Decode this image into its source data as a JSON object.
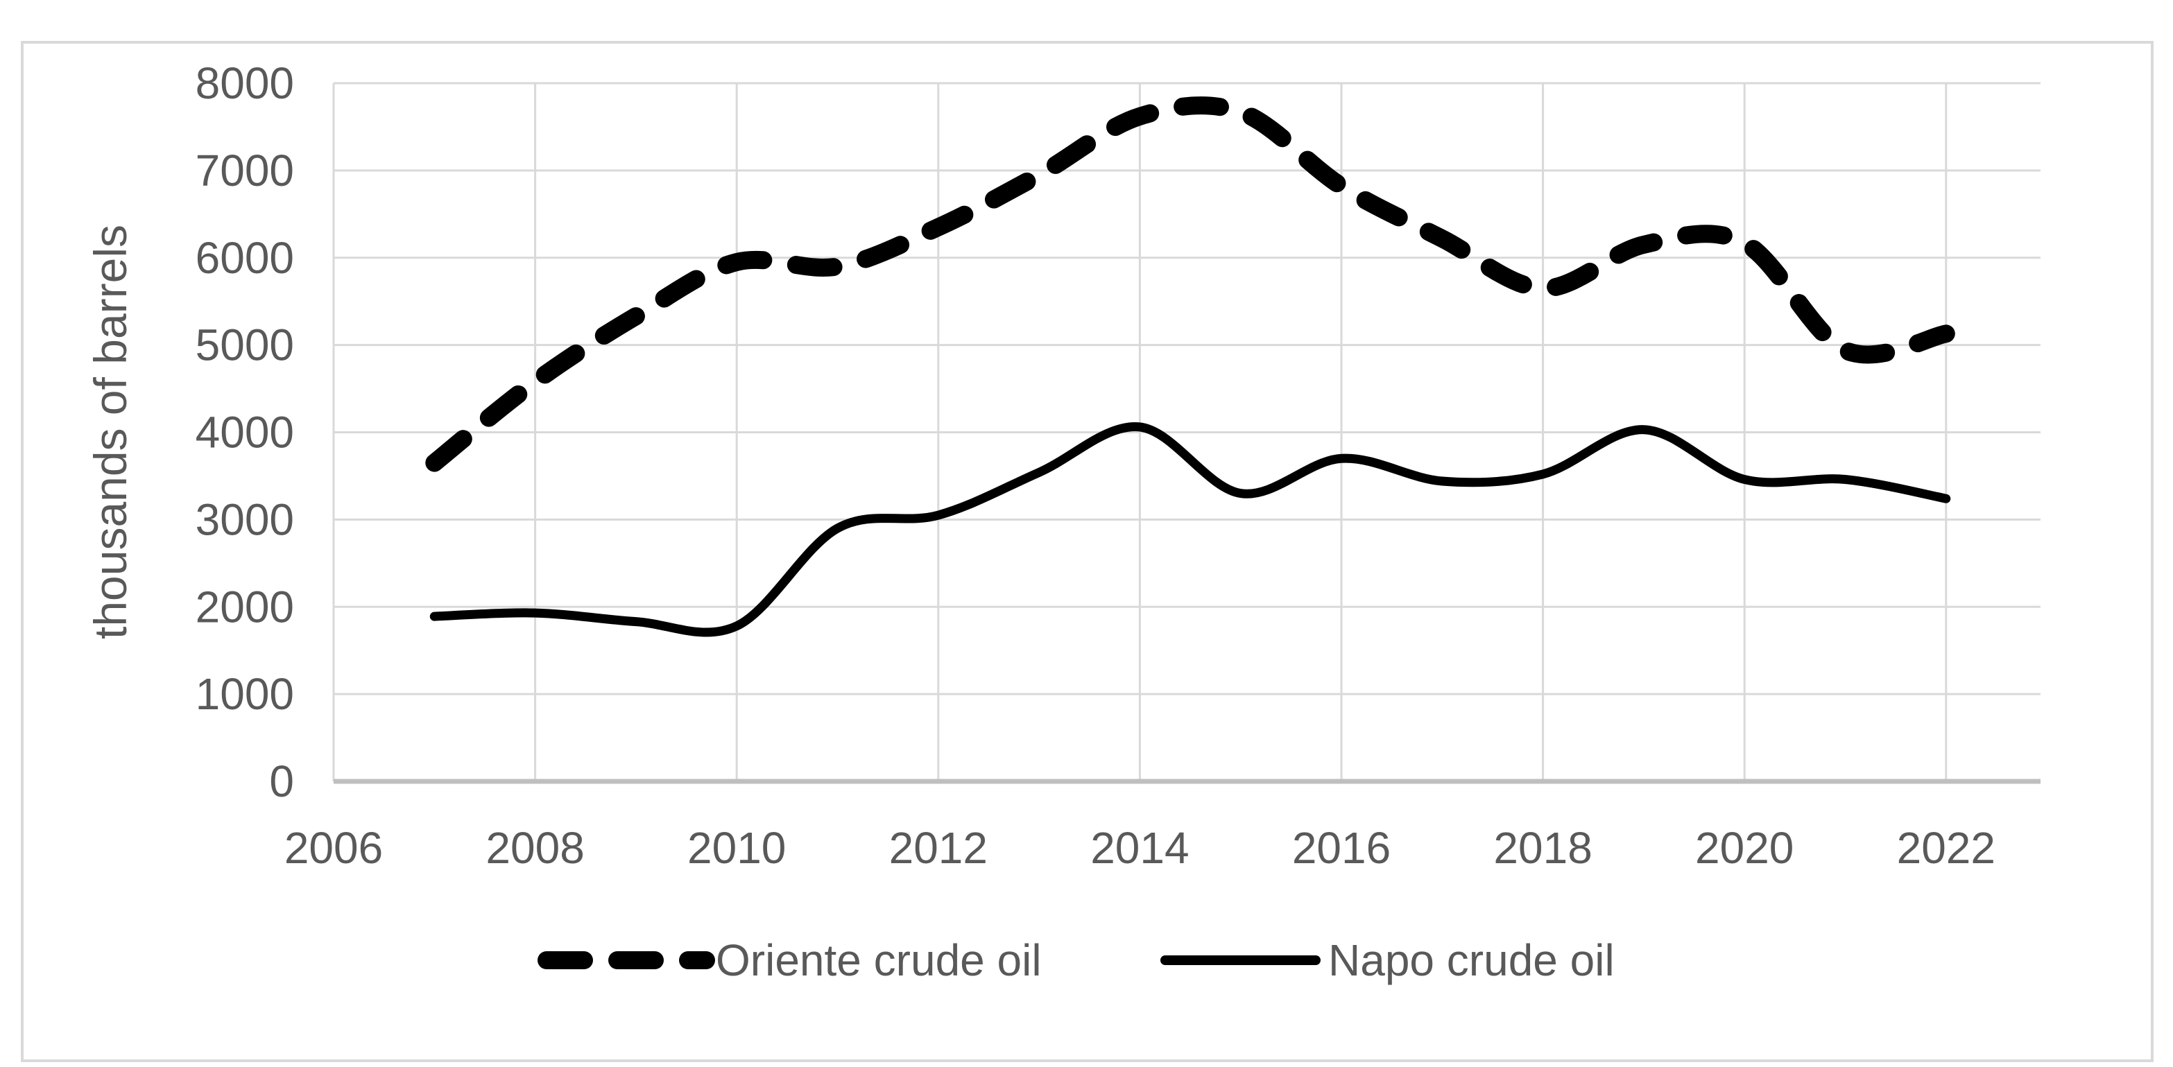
{
  "chart_data": {
    "type": "line",
    "x": [
      2007,
      2008,
      2009,
      2010,
      2011,
      2012,
      2013,
      2014,
      2015,
      2016,
      2017,
      2018,
      2019,
      2020,
      2021,
      2022
    ],
    "series": [
      {
        "name": "Oriente crude oil",
        "style": "dashed",
        "color": "#000000",
        "values": [
          3650,
          4580,
          5330,
          5950,
          5900,
          6350,
          6950,
          7620,
          7670,
          6820,
          6220,
          5650,
          6150,
          6170,
          4940,
          5130
        ]
      },
      {
        "name": "Napo crude oil",
        "style": "solid",
        "color": "#000000",
        "values": [
          1890,
          1930,
          1830,
          1780,
          2900,
          3050,
          3540,
          4060,
          3300,
          3700,
          3440,
          3520,
          4030,
          3460,
          3460,
          3240
        ]
      }
    ],
    "title": "",
    "xlabel": "",
    "ylabel": "thousands of barrels",
    "ylim": [
      0,
      8000
    ],
    "xlim": [
      2006,
      2022.94
    ],
    "yticks": [
      0,
      1000,
      2000,
      3000,
      4000,
      5000,
      6000,
      7000,
      8000
    ],
    "xticks": [
      2006,
      2008,
      2010,
      2012,
      2014,
      2016,
      2018,
      2020,
      2022
    ],
    "grid": true,
    "smooth": true,
    "legend_position": "bottom"
  },
  "colors": {
    "background": "#ffffff",
    "gridline": "#d9d9d9",
    "axis_line": "#bfbfbf",
    "border": "#d9d9d9",
    "label_text": "#595959",
    "series_line": "#000000"
  }
}
